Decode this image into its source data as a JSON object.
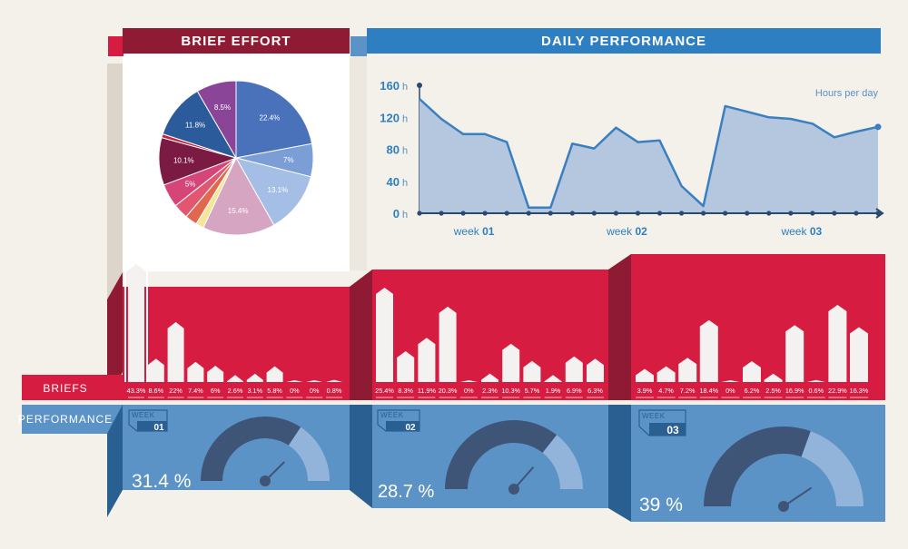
{
  "headers": {
    "brief_effort": "BRIEF EFFORT",
    "daily_performance": "DAILY PERFORMANCE"
  },
  "row_labels": {
    "briefs": "BRIEFS",
    "performance": "PERFORMANCE"
  },
  "colors": {
    "background": "#f4f1ea",
    "red": "#d61c41",
    "red_dark": "#8f1a33",
    "blue": "#5c93c6",
    "blue_header": "#2d7fc1",
    "blue_dark": "#2a5f92",
    "gauge_dark": "#3e5578",
    "gauge_light": "#93b4da",
    "area_fill": "#b4c7df",
    "line": "#3a7fc0",
    "axis": "#2c4a70",
    "bar": "#f4f2f0"
  },
  "chart_data": [
    {
      "type": "pie",
      "title": "BRIEF EFFORT",
      "slices": [
        {
          "label": "22.4%",
          "value": 22.4,
          "color": "#4a72bb"
        },
        {
          "label": "7%",
          "value": 7.0,
          "color": "#7b9ed6"
        },
        {
          "label": "13.1%",
          "value": 13.1,
          "color": "#a4bee6"
        },
        {
          "label": "15.4%",
          "value": 15.4,
          "color": "#d6a5c2"
        },
        {
          "label": "",
          "value": 1.7,
          "color": "#f5e59a"
        },
        {
          "label": "",
          "value": 2.6,
          "color": "#e0684f"
        },
        {
          "label": "",
          "value": 3.2,
          "color": "#e0576f"
        },
        {
          "label": "5%",
          "value": 5.0,
          "color": "#d64577"
        },
        {
          "label": "10.1%",
          "value": 10.1,
          "color": "#7b1a43"
        },
        {
          "label": "",
          "value": 0.8,
          "color": "#c8233a"
        },
        {
          "label": "11.8%",
          "value": 11.8,
          "color": "#2c5b9c"
        },
        {
          "label": "8.5%",
          "value": 8.5,
          "color": "#8a4598"
        }
      ]
    },
    {
      "type": "area",
      "title": "DAILY PERFORMANCE",
      "ylabel": "Hours per day",
      "ylim": [
        0,
        160
      ],
      "yticks": [
        0,
        40,
        80,
        120,
        160
      ],
      "ytick_labels": [
        "0 h",
        "40 h",
        "80 h",
        "120 h",
        "160 h"
      ],
      "week_labels": [
        {
          "prefix": "week ",
          "num": "01",
          "day": 2.5
        },
        {
          "prefix": "week ",
          "num": "02",
          "day": 9.5
        },
        {
          "prefix": "week ",
          "num": "03",
          "day": 17.5
        }
      ],
      "x": [
        0,
        1,
        2,
        3,
        4,
        5,
        6,
        7,
        8,
        9,
        10,
        11,
        12,
        13,
        14,
        15,
        16,
        17,
        18,
        19,
        20,
        21
      ],
      "values": [
        143,
        118,
        99,
        99,
        89,
        7,
        7,
        87,
        81,
        107,
        89,
        91,
        34,
        9,
        134,
        127,
        120,
        118,
        112,
        95,
        102,
        108
      ]
    },
    {
      "type": "bar",
      "title": "week 01 briefs",
      "values": [
        43.3,
        8.6,
        22,
        7.4,
        6,
        2.6,
        3.1,
        5.8,
        0,
        0,
        0.8
      ],
      "labels": [
        "43.3%",
        "8.6%",
        "22%",
        "7.4%",
        "6%",
        "2.6%",
        "3.1%",
        "5.8%",
        "0%",
        "0%",
        "0.8%"
      ],
      "ylim": [
        0,
        43.3
      ]
    },
    {
      "type": "bar",
      "title": "week 02 briefs",
      "values": [
        25.4,
        8.3,
        11.9,
        20.3,
        0,
        2.3,
        10.3,
        5.7,
        1.9,
        6.9,
        6.3
      ],
      "labels": [
        "25.4%",
        "8.3%",
        "11.9%",
        "20.3%",
        "0%",
        "2.3%",
        "10.3%",
        "5.7%",
        "1.9%",
        "6.9%",
        "6.3%"
      ],
      "ylim": [
        0,
        25.4
      ]
    },
    {
      "type": "bar",
      "title": "week 03 briefs",
      "values": [
        3.9,
        4.7,
        7.2,
        18.4,
        0,
        6.2,
        2.5,
        16.9,
        0.6,
        22.9,
        16.3
      ],
      "labels": [
        "3.9%",
        "4.7%",
        "7.2%",
        "18.4%",
        "0%",
        "6.2%",
        "2.5%",
        "16.9%",
        "0.6%",
        "22.9%",
        "16.3%"
      ],
      "ylim": [
        0,
        22.9
      ]
    }
  ],
  "weeks": [
    {
      "tag": "WEEK",
      "number": "01",
      "performance": 31.4,
      "performance_label": "31.4 %"
    },
    {
      "tag": "WEEK",
      "number": "02",
      "performance": 28.7,
      "performance_label": "28.7 %"
    },
    {
      "tag": "WEEK",
      "number": "03",
      "performance": 39,
      "performance_label": "39 %"
    }
  ]
}
